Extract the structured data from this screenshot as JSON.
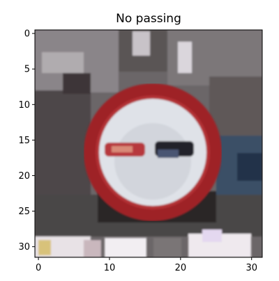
{
  "title": "No passing",
  "chart_data": {
    "type": "image",
    "title": "No passing",
    "xlabel": "",
    "ylabel": "",
    "xlim": [
      -0.5,
      31.5
    ],
    "ylim": [
      31.5,
      -0.5
    ],
    "x_ticks": [
      0,
      10,
      20,
      30
    ],
    "y_ticks": [
      0,
      5,
      10,
      15,
      20,
      25,
      30
    ],
    "image_grid": "32x32 pixels",
    "content": "blurry photo of a round road sign: red ring, white disc, red and black car pictograms"
  },
  "colors": {
    "sign_ring": "#a5262a",
    "sign_face": "#dde0e6",
    "car_left": "#b43a3c",
    "car_right": "#22252d",
    "background_dark": "#5b5657",
    "background_light": "#8c898c",
    "ground_light": "#e8e4ea"
  }
}
